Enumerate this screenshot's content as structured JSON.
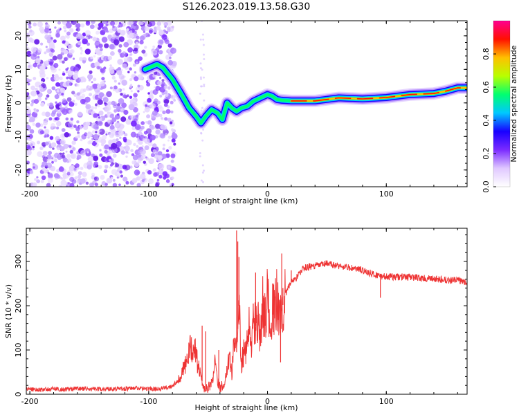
{
  "chart_data": [
    {
      "type": "heatmap",
      "title": "S126.2023.019.13.58.G30",
      "xlabel": "Height of straight line (km)",
      "ylabel": "Frequency (Hz)",
      "xlim": [
        -203,
        168
      ],
      "ylim": [
        -25,
        24.5
      ],
      "xticks": [
        -200,
        -100,
        0,
        100
      ],
      "yticks": [
        20,
        10,
        0,
        -10,
        -20
      ],
      "colorbar": {
        "label": "Normalized spectral amplitude",
        "range": [
          0,
          1
        ],
        "ticks": [
          0.0,
          0.2,
          0.4,
          0.6,
          0.8
        ],
        "tick_labels": [
          "0.0",
          "0.2",
          "0.4",
          "0.6",
          "0.8"
        ],
        "colormap": "gist_ncar",
        "colors": [
          "#ffffff",
          "#e0c8ff",
          "#7b2bff",
          "#1800ff",
          "#00c8ff",
          "#00ff70",
          "#b8ff00",
          "#ffc000",
          "#ff1000",
          "#ff0090"
        ]
      },
      "ridge": {
        "x": [
          -103,
          -93,
          -88,
          -80,
          -74,
          -70,
          -66,
          -60,
          -56,
          -52,
          -47,
          -42,
          -38,
          -34,
          -30,
          -26,
          -22,
          -17,
          -12,
          -6,
          0,
          4,
          8,
          12,
          20,
          40,
          60,
          80,
          100,
          120,
          140,
          150,
          160,
          168
        ],
        "y": [
          10,
          11.5,
          10.5,
          7,
          3.5,
          1,
          -1.5,
          -4,
          -6,
          -4,
          -2,
          -3,
          -5,
          0,
          -1.5,
          -2.5,
          -1.5,
          -1,
          0.5,
          1.5,
          2.5,
          2,
          1,
          0.8,
          0.6,
          0.6,
          1.5,
          1.2,
          1.6,
          2.5,
          2.8,
          3.5,
          4.5,
          4.5
        ]
      },
      "noise_region": {
        "xmin": -203,
        "xmax": -78
      }
    },
    {
      "type": "line",
      "title": "",
      "xlabel": "Height of straight line (km)",
      "ylabel": "SNR (10 * v/v)",
      "xlim": [
        -203,
        168
      ],
      "ylim": [
        0,
        375
      ],
      "xticks": [
        -200,
        -100,
        0,
        100
      ],
      "yticks": [
        0,
        100,
        200,
        300
      ],
      "color": "#ee3333",
      "series": [
        {
          "x": [
            -203,
            -190,
            -180,
            -170,
            -160,
            -150,
            -140,
            -130,
            -120,
            -110,
            -100,
            -90,
            -85,
            -80,
            -75,
            -72,
            -70,
            -68,
            -65,
            -62,
            -60,
            -58,
            -56,
            -54,
            -52,
            -50,
            -48,
            -46,
            -44,
            -42,
            -40,
            -38,
            -36,
            -34,
            -32,
            -30,
            -28,
            -26,
            -24,
            -22,
            -20,
            -18,
            -16,
            -14,
            -12,
            -10,
            -8,
            -6,
            -4,
            -2,
            0,
            2,
            4,
            6,
            8,
            10,
            12,
            15,
            20,
            25,
            30,
            40,
            50,
            60,
            70,
            80,
            90,
            100,
            110,
            120,
            130,
            140,
            150,
            160,
            168
          ],
          "y": [
            12,
            10,
            12,
            11,
            13,
            12,
            11,
            13,
            12,
            14,
            12,
            13,
            15,
            20,
            32,
            50,
            60,
            75,
            100,
            110,
            85,
            60,
            40,
            20,
            10,
            15,
            20,
            35,
            85,
            30,
            15,
            20,
            25,
            60,
            95,
            40,
            140,
            95,
            200,
            70,
            95,
            90,
            165,
            100,
            160,
            155,
            160,
            120,
            200,
            190,
            215,
            160,
            200,
            175,
            230,
            165,
            190,
            225,
            255,
            265,
            285,
            290,
            295,
            290,
            285,
            280,
            270,
            265,
            265,
            265,
            262,
            260,
            258,
            257,
            255
          ]
        }
      ],
      "spikes": {
        "x": [
          -55,
          -52,
          -41,
          -26,
          -25,
          -24,
          -12,
          -10,
          11,
          12,
          13,
          20,
          95
        ],
        "y": [
          155,
          142,
          100,
          370,
          345,
          310,
          205,
          275,
          72,
          318,
          240,
          280,
          218
        ]
      }
    }
  ]
}
